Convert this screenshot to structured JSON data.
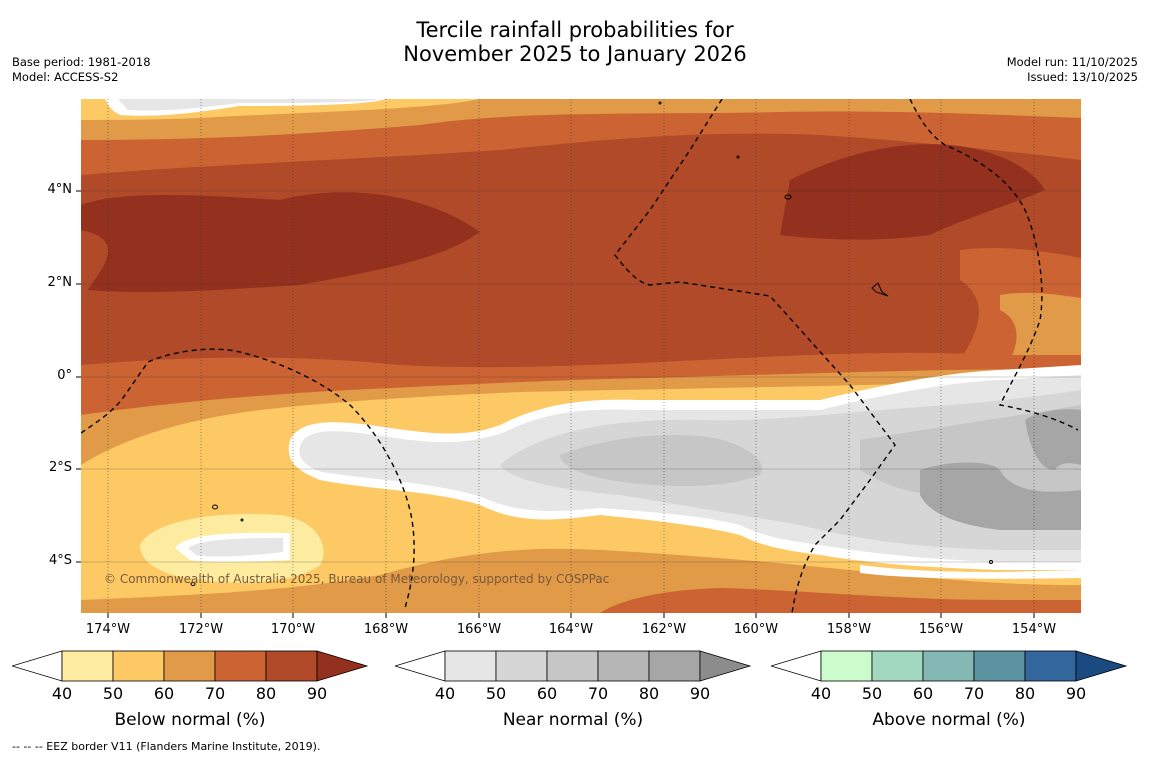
{
  "title": {
    "line1": "Tercile rainfall probabilities for",
    "line2": "November 2025 to January 2026"
  },
  "meta_left": {
    "base_period": "Base period: 1981-2018",
    "model": "Model: ACCESS-S2"
  },
  "meta_right": {
    "model_run": "Model run: 11/10/2025",
    "issued": "Issued: 13/10/2025"
  },
  "map": {
    "lat_labels": [
      "4°N",
      "2°N",
      "0°",
      "2°S",
      "4°S"
    ],
    "lon_labels": [
      "174°W",
      "172°W",
      "170°W",
      "168°W",
      "166°W",
      "164°W",
      "162°W",
      "160°W",
      "158°W",
      "156°W",
      "154°W"
    ],
    "copyright": "© Commonwealth of Australia 2025, Bureau of Meteorology, supported by COSPPac"
  },
  "colorbars": [
    {
      "id": "below",
      "label": "Below normal (%)",
      "ticks": [
        "40",
        "50",
        "60",
        "70",
        "80",
        "90"
      ],
      "colors": [
        "#fdeba0",
        "#fcc965",
        "#e09a48",
        "#cc6332",
        "#b04a28",
        "#93301e"
      ]
    },
    {
      "id": "near",
      "label": "Near normal (%)",
      "ticks": [
        "40",
        "50",
        "60",
        "70",
        "80",
        "90"
      ],
      "colors": [
        "#e6e6e6",
        "#d6d6d6",
        "#c6c6c6",
        "#b6b6b6",
        "#a6a6a6",
        "#8c8c8c"
      ]
    },
    {
      "id": "above",
      "label": "Above normal (%)",
      "ticks": [
        "40",
        "50",
        "60",
        "70",
        "80",
        "90"
      ],
      "colors": [
        "#ccfccc",
        "#a2d8bf",
        "#83b8b4",
        "#5c93a0",
        "#33669c",
        "#1a4a80"
      ]
    }
  ],
  "footnote": "-- -- -- EEZ border V11 (Flanders Marine Institute, 2019)."
}
